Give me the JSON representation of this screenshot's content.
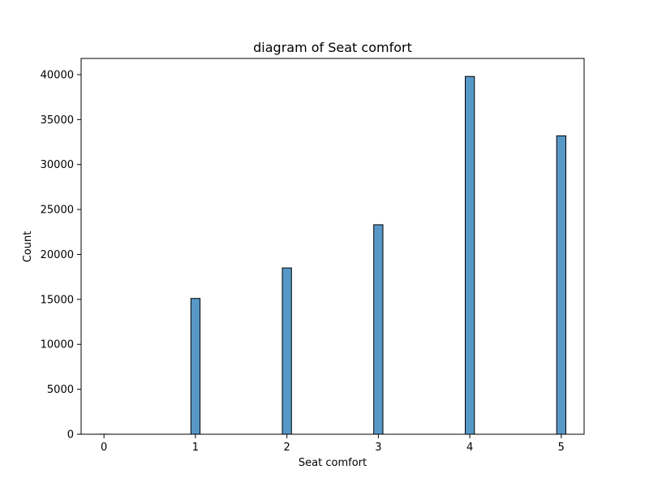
{
  "chart_data": {
    "type": "bar",
    "title": "diagram of Seat comfort",
    "xlabel": "Seat comfort",
    "ylabel": "Count",
    "bins": [
      {
        "x": 0,
        "value": 5
      },
      {
        "x": 1,
        "value": 15100
      },
      {
        "x": 2,
        "value": 18500
      },
      {
        "x": 3,
        "value": 23300
      },
      {
        "x": 4,
        "value": 39800
      },
      {
        "x": 5,
        "value": 33200
      }
    ],
    "bar_width": 0.1,
    "xlim": [
      -0.25,
      5.25
    ],
    "ylim": [
      0,
      41800
    ],
    "xticks": [
      0,
      1,
      2,
      3,
      4,
      5
    ],
    "yticks": [
      0,
      5000,
      10000,
      15000,
      20000,
      25000,
      30000,
      35000,
      40000
    ],
    "grid": false,
    "legend": false,
    "colors": {
      "bar_fill": "#5798c7",
      "bar_edge": "#000000"
    }
  }
}
